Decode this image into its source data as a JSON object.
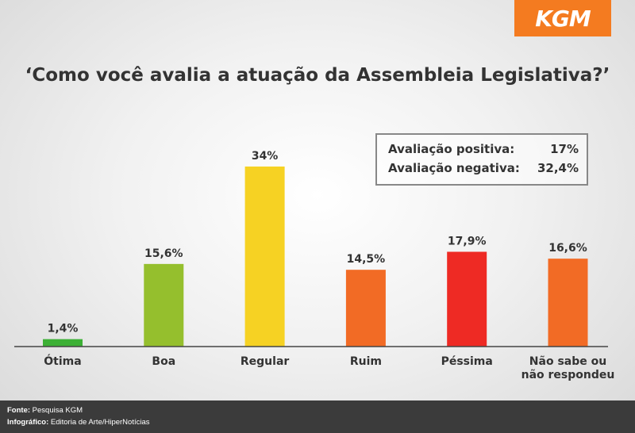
{
  "brand": {
    "logo_text": "KGM",
    "logo_color": "#f47b20"
  },
  "chart_data": {
    "type": "bar",
    "title": "‘Como você avalia a atuação da Assembleia Legislativa?’",
    "categories": [
      "Ótima",
      "Boa",
      "Regular",
      "Ruim",
      "Péssima",
      "Não sabe ou não respondeu"
    ],
    "category_lines": [
      [
        "Ótima"
      ],
      [
        "Boa"
      ],
      [
        "Regular"
      ],
      [
        "Ruim"
      ],
      [
        "Péssima"
      ],
      [
        "Não sabe ou",
        "não respondeu"
      ]
    ],
    "values": [
      1.4,
      15.6,
      34,
      14.5,
      17.9,
      16.6
    ],
    "value_labels": [
      "1,4%",
      "15,6%",
      "34%",
      "14,5%",
      "17,9%",
      "16,6%"
    ],
    "colors": [
      "#3cb035",
      "#95bf2d",
      "#f6d223",
      "#f26b25",
      "#ee2a24",
      "#f26b25"
    ],
    "ylim": [
      0,
      34
    ],
    "grid": false,
    "legend": "none"
  },
  "summary": {
    "positive_label": "Avaliação positiva:",
    "positive_value": "17%",
    "negative_label": "Avaliação negativa:",
    "negative_value": "32,4%"
  },
  "footer": {
    "source_label": "Fonte:",
    "source_value": "Pesquisa KGM",
    "credit_label": "Infográfico:",
    "credit_value": "Editoria de Arte/HiperNotícias"
  }
}
